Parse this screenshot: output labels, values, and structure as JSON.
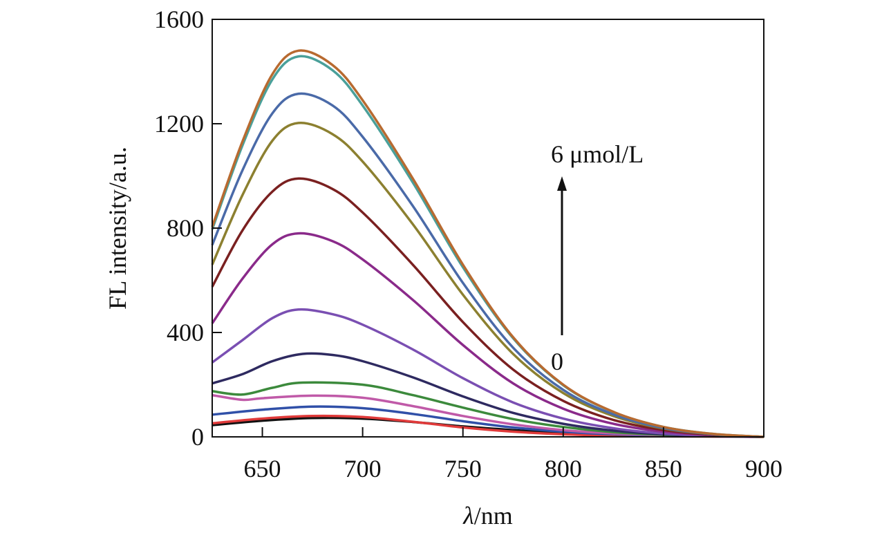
{
  "chart_data": {
    "type": "line",
    "xlabel_italic": "λ",
    "xlabel_rest": "/nm",
    "ylabel": "FL intensity/a.u.",
    "xlim": [
      625,
      900
    ],
    "ylim": [
      0,
      1600
    ],
    "xticks": [
      650,
      700,
      750,
      800,
      850,
      900
    ],
    "yticks": [
      0,
      400,
      800,
      1200,
      1600
    ],
    "grid": false,
    "legend": "none",
    "annotations": {
      "top": "6 μmol/L",
      "bottom": "0"
    },
    "series": [
      {
        "color": "#111111",
        "values": [
          [
            625,
            45
          ],
          [
            650,
            62
          ],
          [
            675,
            72
          ],
          [
            700,
            70
          ],
          [
            725,
            57
          ],
          [
            750,
            40
          ],
          [
            775,
            26
          ],
          [
            800,
            15
          ],
          [
            825,
            8
          ],
          [
            850,
            4
          ],
          [
            875,
            2
          ],
          [
            900,
            0
          ]
        ]
      },
      {
        "color": "#e03a3a",
        "values": [
          [
            625,
            52
          ],
          [
            650,
            70
          ],
          [
            675,
            80
          ],
          [
            700,
            76
          ],
          [
            725,
            58
          ],
          [
            750,
            36
          ],
          [
            775,
            20
          ],
          [
            800,
            10
          ],
          [
            825,
            5
          ],
          [
            850,
            2
          ],
          [
            875,
            1
          ],
          [
            900,
            0
          ]
        ]
      },
      {
        "color": "#3050a8",
        "values": [
          [
            625,
            85
          ],
          [
            650,
            104
          ],
          [
            675,
            116
          ],
          [
            700,
            110
          ],
          [
            725,
            88
          ],
          [
            750,
            60
          ],
          [
            775,
            36
          ],
          [
            800,
            20
          ],
          [
            825,
            10
          ],
          [
            850,
            5
          ],
          [
            875,
            2
          ],
          [
            900,
            0
          ]
        ]
      },
      {
        "color": "#c05aa8",
        "values": [
          [
            625,
            160
          ],
          [
            640,
            142
          ],
          [
            650,
            148
          ],
          [
            675,
            158
          ],
          [
            700,
            150
          ],
          [
            725,
            118
          ],
          [
            750,
            80
          ],
          [
            775,
            48
          ],
          [
            800,
            26
          ],
          [
            825,
            13
          ],
          [
            850,
            6
          ],
          [
            875,
            2
          ],
          [
            900,
            0
          ]
        ]
      },
      {
        "color": "#3c8a3c",
        "values": [
          [
            625,
            175
          ],
          [
            640,
            162
          ],
          [
            655,
            188
          ],
          [
            670,
            208
          ],
          [
            700,
            200
          ],
          [
            725,
            160
          ],
          [
            750,
            112
          ],
          [
            775,
            68
          ],
          [
            800,
            38
          ],
          [
            825,
            18
          ],
          [
            850,
            8
          ],
          [
            875,
            3
          ],
          [
            900,
            0
          ]
        ]
      },
      {
        "color": "#2e2a60",
        "values": [
          [
            625,
            205
          ],
          [
            640,
            240
          ],
          [
            655,
            290
          ],
          [
            670,
            318
          ],
          [
            685,
            314
          ],
          [
            700,
            290
          ],
          [
            725,
            228
          ],
          [
            750,
            155
          ],
          [
            775,
            92
          ],
          [
            800,
            50
          ],
          [
            825,
            24
          ],
          [
            850,
            10
          ],
          [
            875,
            3
          ],
          [
            900,
            0
          ]
        ]
      },
      {
        "color": "#7a4fb2",
        "values": [
          [
            625,
            285
          ],
          [
            640,
            370
          ],
          [
            655,
            455
          ],
          [
            668,
            488
          ],
          [
            685,
            470
          ],
          [
            700,
            430
          ],
          [
            725,
            335
          ],
          [
            750,
            225
          ],
          [
            775,
            132
          ],
          [
            800,
            70
          ],
          [
            825,
            33
          ],
          [
            850,
            13
          ],
          [
            875,
            4
          ],
          [
            900,
            0
          ]
        ]
      },
      {
        "color": "#8a2a8a",
        "values": [
          [
            625,
            435
          ],
          [
            640,
            605
          ],
          [
            655,
            738
          ],
          [
            668,
            780
          ],
          [
            685,
            750
          ],
          [
            700,
            680
          ],
          [
            725,
            525
          ],
          [
            750,
            352
          ],
          [
            775,
            205
          ],
          [
            800,
            108
          ],
          [
            825,
            50
          ],
          [
            850,
            20
          ],
          [
            875,
            6
          ],
          [
            900,
            0
          ]
        ]
      },
      {
        "color": "#7a2020",
        "values": [
          [
            625,
            575
          ],
          [
            640,
            790
          ],
          [
            655,
            940
          ],
          [
            668,
            990
          ],
          [
            685,
            950
          ],
          [
            700,
            860
          ],
          [
            725,
            660
          ],
          [
            750,
            440
          ],
          [
            775,
            258
          ],
          [
            800,
            138
          ],
          [
            825,
            65
          ],
          [
            850,
            26
          ],
          [
            875,
            8
          ],
          [
            900,
            0
          ]
        ]
      },
      {
        "color": "#8c8030",
        "values": [
          [
            625,
            660
          ],
          [
            640,
            925
          ],
          [
            655,
            1135
          ],
          [
            668,
            1203
          ],
          [
            685,
            1160
          ],
          [
            700,
            1055
          ],
          [
            725,
            815
          ],
          [
            750,
            545
          ],
          [
            775,
            318
          ],
          [
            800,
            168
          ],
          [
            825,
            80
          ],
          [
            850,
            32
          ],
          [
            875,
            10
          ],
          [
            900,
            0
          ]
        ]
      },
      {
        "color": "#4a6aa8",
        "values": [
          [
            625,
            735
          ],
          [
            640,
            1020
          ],
          [
            655,
            1240
          ],
          [
            668,
            1315
          ],
          [
            685,
            1270
          ],
          [
            700,
            1150
          ],
          [
            725,
            885
          ],
          [
            750,
            590
          ],
          [
            775,
            342
          ],
          [
            800,
            180
          ],
          [
            825,
            86
          ],
          [
            850,
            34
          ],
          [
            875,
            10
          ],
          [
            900,
            0
          ]
        ]
      },
      {
        "color": "#4aa09a",
        "values": [
          [
            625,
            795
          ],
          [
            640,
            1115
          ],
          [
            655,
            1370
          ],
          [
            668,
            1458
          ],
          [
            685,
            1405
          ],
          [
            700,
            1270
          ],
          [
            725,
            975
          ],
          [
            750,
            650
          ],
          [
            775,
            378
          ],
          [
            800,
            198
          ],
          [
            825,
            95
          ],
          [
            850,
            38
          ],
          [
            875,
            11
          ],
          [
            900,
            0
          ]
        ]
      },
      {
        "color": "#b86a30",
        "values": [
          [
            625,
            805
          ],
          [
            640,
            1130
          ],
          [
            655,
            1390
          ],
          [
            668,
            1480
          ],
          [
            685,
            1425
          ],
          [
            700,
            1290
          ],
          [
            725,
            990
          ],
          [
            750,
            660
          ],
          [
            775,
            382
          ],
          [
            800,
            200
          ],
          [
            825,
            96
          ],
          [
            850,
            38
          ],
          [
            875,
            11
          ],
          [
            900,
            0
          ]
        ]
      }
    ]
  }
}
